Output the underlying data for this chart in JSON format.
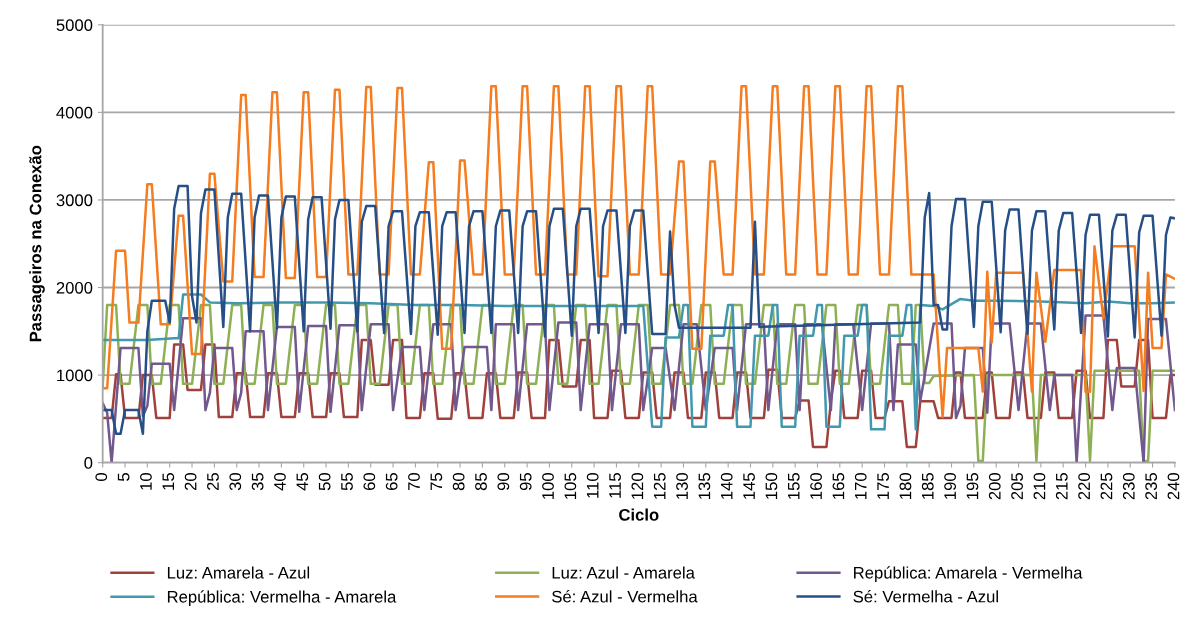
{
  "chart_data": {
    "type": "line",
    "xlabel": "Ciclo",
    "ylabel": "Passageiros na Conexão",
    "xlim": [
      0,
      240
    ],
    "xticks": [
      0,
      5,
      10,
      15,
      20,
      25,
      30,
      35,
      40,
      45,
      50,
      55,
      60,
      65,
      70,
      75,
      80,
      85,
      90,
      95,
      100,
      105,
      110,
      115,
      120,
      125,
      130,
      135,
      140,
      145,
      150,
      155,
      160,
      165,
      170,
      175,
      180,
      185,
      190,
      195,
      200,
      205,
      210,
      215,
      220,
      225,
      230,
      235,
      240
    ],
    "ylim": [
      0,
      5000
    ],
    "yticks": [
      0,
      1000,
      2000,
      3000,
      4000,
      5000
    ],
    "grid": "y",
    "legend": "bottom",
    "marker": "none",
    "line_style": "solid",
    "series": [
      {
        "name": "Luz: Amarela - Azul",
        "color": "#a0413c",
        "x": [
          0,
          2,
          3,
          4,
          5,
          8,
          9,
          11,
          12,
          15,
          16,
          18,
          19,
          22,
          23,
          25,
          26,
          29,
          30,
          32,
          33,
          36,
          37,
          39,
          40,
          43,
          44,
          46,
          47,
          50,
          51,
          53,
          54,
          57,
          58,
          60,
          61,
          64,
          65,
          67,
          68,
          71,
          72,
          74,
          75,
          78,
          79,
          81,
          82,
          85,
          86,
          88,
          89,
          92,
          93,
          95,
          96,
          99,
          100,
          102,
          103,
          106,
          107,
          109,
          110,
          113,
          114,
          116,
          117,
          120,
          121,
          123,
          124,
          127,
          128,
          130,
          131,
          134,
          135,
          137,
          138,
          141,
          142,
          144,
          145,
          148,
          149,
          151,
          152,
          155,
          156,
          158,
          159,
          162,
          163,
          164,
          165,
          166,
          169,
          170,
          172,
          173,
          175,
          176,
          179,
          180,
          182,
          183,
          186,
          187,
          190,
          191,
          192,
          193,
          197,
          198,
          199,
          200,
          203,
          204,
          206,
          207,
          210,
          211,
          213,
          214,
          217,
          218,
          220,
          221,
          224,
          225,
          227,
          228,
          231,
          232,
          234,
          235,
          238,
          239,
          240
        ],
        "values": [
          510,
          510,
          1010,
          1010,
          510,
          510,
          1000,
          1000,
          510,
          510,
          1350,
          1350,
          830,
          830,
          1350,
          1350,
          520,
          520,
          1020,
          1020,
          520,
          520,
          1020,
          1020,
          520,
          520,
          1020,
          1020,
          520,
          520,
          1020,
          1020,
          520,
          520,
          1400,
          1400,
          890,
          890,
          1400,
          1400,
          510,
          510,
          1020,
          1020,
          500,
          500,
          1020,
          1020,
          510,
          510,
          1020,
          1020,
          510,
          510,
          1030,
          1030,
          510,
          510,
          1400,
          1400,
          870,
          870,
          1400,
          1400,
          510,
          510,
          1050,
          1050,
          510,
          510,
          1030,
          1030,
          510,
          510,
          1030,
          1030,
          510,
          510,
          1030,
          1030,
          510,
          510,
          1030,
          1030,
          510,
          510,
          1060,
          1060,
          510,
          510,
          710,
          710,
          180,
          180,
          700,
          1050,
          1050,
          510,
          510,
          1050,
          1050,
          510,
          510,
          700,
          700,
          180,
          180,
          700,
          700,
          510,
          510,
          1030,
          1030,
          510,
          510,
          1030,
          1030,
          510,
          510,
          1030,
          1030,
          510,
          510,
          1030,
          1030,
          510,
          510,
          1050,
          1050,
          510,
          510,
          1400,
          1400,
          870,
          870,
          1400,
          1400,
          510,
          510,
          1000,
          1000
        ]
      },
      {
        "name": "Luz: Azul - Amarela",
        "color": "#8eb054",
        "x": [
          0,
          1,
          3,
          4,
          6,
          8,
          10,
          11,
          13,
          15,
          17,
          18,
          20,
          22,
          24,
          25,
          27,
          29,
          31,
          32,
          34,
          36,
          38,
          39,
          41,
          43,
          45,
          46,
          48,
          50,
          52,
          53,
          55,
          57,
          59,
          60,
          62,
          64,
          66,
          67,
          69,
          71,
          73,
          74,
          76,
          78,
          80,
          81,
          83,
          85,
          87,
          88,
          90,
          92,
          94,
          95,
          97,
          99,
          101,
          102,
          104,
          106,
          108,
          109,
          111,
          113,
          115,
          116,
          118,
          120,
          122,
          123,
          125,
          127,
          129,
          130,
          132,
          134,
          136,
          137,
          139,
          141,
          143,
          144,
          146,
          148,
          150,
          151,
          153,
          155,
          157,
          158,
          160,
          162,
          164,
          165,
          167,
          169,
          171,
          172,
          174,
          176,
          178,
          179,
          181,
          182,
          183,
          184,
          185,
          186,
          195,
          196,
          197,
          198,
          208,
          209,
          210,
          220,
          221,
          222,
          232,
          233,
          234,
          235,
          240
        ],
        "values": [
          870,
          1800,
          1800,
          900,
          900,
          1800,
          1800,
          900,
          900,
          1800,
          1800,
          900,
          900,
          1800,
          1800,
          900,
          900,
          1800,
          1800,
          900,
          900,
          1800,
          1800,
          900,
          900,
          1800,
          1800,
          900,
          900,
          1800,
          1800,
          900,
          900,
          1800,
          1800,
          900,
          900,
          1800,
          1800,
          900,
          900,
          1800,
          1800,
          900,
          900,
          1800,
          1800,
          900,
          900,
          1800,
          1800,
          900,
          900,
          1800,
          1800,
          900,
          900,
          1800,
          1800,
          900,
          900,
          1800,
          1800,
          900,
          900,
          1800,
          1800,
          900,
          900,
          1800,
          1800,
          900,
          900,
          1800,
          1800,
          900,
          900,
          1800,
          1800,
          900,
          900,
          1800,
          1800,
          900,
          900,
          1800,
          1800,
          900,
          900,
          1800,
          1800,
          900,
          900,
          1800,
          1800,
          900,
          900,
          1800,
          1800,
          900,
          900,
          1800,
          1800,
          900,
          900,
          1800,
          1800,
          910,
          910,
          990,
          1000,
          20,
          20,
          1000,
          1000,
          20,
          1000,
          1000,
          20,
          1050,
          1050,
          20,
          20,
          1050,
          1050
        ]
      },
      {
        "name": "República: Amarela - Vermelha",
        "color": "#71588f",
        "x": [
          0,
          1,
          2,
          4,
          8,
          9,
          10,
          11,
          15,
          16,
          18,
          22,
          23,
          24,
          25,
          29,
          30,
          31,
          32,
          36,
          37,
          39,
          43,
          44,
          46,
          50,
          51,
          53,
          57,
          58,
          60,
          64,
          65,
          67,
          71,
          72,
          74,
          78,
          79,
          81,
          86,
          87,
          88,
          92,
          93,
          95,
          99,
          100,
          102,
          106,
          107,
          109,
          113,
          114,
          116,
          120,
          121,
          123,
          126,
          128,
          130,
          133,
          135,
          137,
          141,
          142,
          144,
          148,
          149,
          151,
          155,
          156,
          157,
          161,
          163,
          164,
          168,
          170,
          172,
          176,
          177,
          178,
          182,
          183,
          186,
          190,
          191,
          192,
          193,
          197,
          198,
          199,
          203,
          205,
          207,
          210,
          212,
          213,
          217,
          218,
          220,
          224,
          226,
          227,
          231,
          233,
          234,
          238,
          240
        ],
        "values": [
          680,
          570,
          0,
          1310,
          1310,
          530,
          650,
          1130,
          1130,
          600,
          1650,
          1650,
          600,
          800,
          1310,
          1310,
          600,
          800,
          1500,
          1500,
          600,
          1550,
          1550,
          580,
          1560,
          1560,
          580,
          1570,
          1570,
          600,
          1580,
          1580,
          600,
          1320,
          1320,
          600,
          1580,
          1580,
          600,
          1320,
          1320,
          600,
          1580,
          1580,
          600,
          1580,
          1580,
          600,
          1600,
          1600,
          600,
          1580,
          1580,
          600,
          1580,
          1580,
          600,
          1310,
          1310,
          600,
          1580,
          1580,
          600,
          1310,
          1310,
          600,
          1580,
          1580,
          600,
          1580,
          1580,
          600,
          1580,
          1580,
          600,
          1580,
          1580,
          600,
          1590,
          1590,
          600,
          1350,
          1350,
          700,
          1590,
          1590,
          510,
          650,
          1310,
          1310,
          570,
          1590,
          1590,
          600,
          1590,
          1590,
          600,
          1000,
          1000,
          0,
          1680,
          1680,
          600,
          1080,
          1080,
          0,
          1640,
          1640,
          600
        ]
      },
      {
        "name": "República: Vermelha - Amarela",
        "color": "#4198af",
        "x": [
          0,
          10,
          16,
          17,
          18,
          22,
          24,
          30,
          40,
          50,
          60,
          70,
          80,
          90,
          100,
          110,
          120,
          121,
          123,
          125,
          126,
          129,
          130,
          131,
          132,
          135,
          136,
          139,
          140,
          141,
          142,
          145,
          146,
          149,
          150,
          151,
          152,
          155,
          156,
          159,
          160,
          161,
          162,
          165,
          166,
          169,
          170,
          171,
          172,
          175,
          176,
          179,
          180,
          181,
          182,
          183,
          186,
          188,
          190,
          192,
          195,
          200,
          210,
          220,
          225,
          230,
          235,
          240
        ],
        "values": [
          1400,
          1400,
          1420,
          1420,
          1920,
          1920,
          1830,
          1820,
          1830,
          1830,
          1820,
          1800,
          1800,
          1790,
          1790,
          1790,
          1790,
          1790,
          410,
          410,
          1430,
          1430,
          1800,
          1800,
          410,
          410,
          1450,
          1450,
          1800,
          1800,
          410,
          410,
          1450,
          1450,
          1800,
          1800,
          410,
          410,
          1450,
          1450,
          1800,
          1800,
          410,
          410,
          1450,
          1450,
          1800,
          1800,
          380,
          380,
          1450,
          1450,
          1800,
          1800,
          380,
          1800,
          1790,
          1750,
          1810,
          1870,
          1850,
          1850,
          1840,
          1820,
          1840,
          1820,
          1820,
          1830
        ]
      },
      {
        "name": "Sé: Azul - Vermelha",
        "color": "#f57c1f",
        "x": [
          0,
          1,
          3,
          5,
          6,
          8,
          10,
          11,
          13,
          15,
          17,
          18,
          20,
          22,
          24,
          25,
          27,
          29,
          31,
          32,
          34,
          36,
          38,
          39,
          41,
          43,
          45,
          46,
          48,
          50,
          52,
          53,
          55,
          57,
          59,
          60,
          62,
          64,
          66,
          67,
          69,
          71,
          73,
          74,
          76,
          78,
          80,
          81,
          83,
          85,
          87,
          88,
          90,
          92,
          94,
          95,
          97,
          99,
          101,
          102,
          104,
          106,
          108,
          109,
          111,
          113,
          115,
          116,
          118,
          120,
          122,
          123,
          125,
          127,
          129,
          130,
          132,
          134,
          136,
          137,
          139,
          141,
          143,
          144,
          146,
          148,
          150,
          151,
          153,
          155,
          157,
          158,
          160,
          162,
          164,
          165,
          167,
          169,
          171,
          172,
          174,
          176,
          178,
          179,
          181,
          186,
          188,
          189,
          196,
          197,
          198,
          199,
          200,
          206,
          208,
          209,
          211,
          213,
          219,
          220,
          221,
          222,
          224,
          226,
          231,
          233,
          234,
          235,
          237,
          238,
          240
        ],
        "values": [
          850,
          850,
          2420,
          2420,
          1600,
          1600,
          3180,
          3180,
          1580,
          1580,
          2820,
          2820,
          1240,
          1240,
          3300,
          3300,
          2070,
          2070,
          4200,
          4200,
          2120,
          2120,
          4230,
          4230,
          2110,
          2110,
          4230,
          4230,
          2120,
          2120,
          4260,
          4260,
          2150,
          2150,
          4290,
          4290,
          2150,
          2150,
          4280,
          4280,
          2150,
          2150,
          3430,
          3430,
          1300,
          1300,
          3450,
          3450,
          2150,
          2150,
          4300,
          4300,
          2150,
          2150,
          4300,
          4300,
          2150,
          2150,
          4300,
          4300,
          2150,
          2150,
          4300,
          4300,
          2130,
          2130,
          4300,
          4300,
          2150,
          2150,
          4300,
          4300,
          2150,
          2150,
          3440,
          3440,
          1300,
          1300,
          3440,
          3440,
          2150,
          2150,
          4300,
          4300,
          2150,
          2150,
          4300,
          4300,
          2150,
          2150,
          4300,
          4300,
          2150,
          2150,
          4300,
          4300,
          2150,
          2150,
          4300,
          4300,
          2150,
          2150,
          4300,
          4300,
          2150,
          2150,
          520,
          1310,
          1310,
          810,
          2180,
          1370,
          2170,
          2170,
          810,
          2170,
          1380,
          2200,
          2200,
          810,
          810,
          2470,
          1650,
          2470,
          2470,
          820,
          2170,
          1310,
          1310,
          2150,
          2100
        ]
      },
      {
        "name": "Sé: Vermelha - Azul",
        "color": "#254f86",
        "x": [
          0,
          2,
          3,
          4,
          5,
          8,
          9,
          10,
          11,
          14,
          15,
          16,
          17,
          19,
          20,
          21,
          22,
          23,
          25,
          27,
          28,
          29,
          31,
          33,
          34,
          35,
          37,
          39,
          40,
          41,
          43,
          45,
          46,
          47,
          49,
          51,
          52,
          53,
          55,
          57,
          58,
          59,
          61,
          63,
          64,
          65,
          67,
          69,
          70,
          71,
          73,
          75,
          76,
          77,
          79,
          81,
          82,
          83,
          85,
          87,
          88,
          89,
          91,
          93,
          94,
          95,
          97,
          99,
          100,
          101,
          103,
          105,
          106,
          107,
          109,
          111,
          112,
          113,
          115,
          117,
          118,
          119,
          121,
          123,
          126,
          127,
          128,
          129,
          145,
          146,
          147,
          183,
          184,
          185,
          186,
          187,
          188,
          189,
          190,
          191,
          193,
          195,
          196,
          197,
          199,
          201,
          202,
          203,
          205,
          207,
          208,
          209,
          211,
          213,
          214,
          215,
          217,
          219,
          220,
          221,
          223,
          225,
          226,
          227,
          229,
          231,
          232,
          233,
          235,
          237,
          238,
          239,
          240
        ],
        "values": [
          600,
          600,
          330,
          330,
          600,
          600,
          330,
          1500,
          1850,
          1850,
          1600,
          2900,
          3160,
          3160,
          1900,
          1600,
          2850,
          3120,
          3120,
          1550,
          2800,
          3070,
          3070,
          1500,
          2800,
          3050,
          3050,
          1530,
          2800,
          3040,
          3040,
          1500,
          2780,
          3030,
          3030,
          1530,
          2780,
          3000,
          3000,
          1500,
          2750,
          2930,
          2930,
          1480,
          2700,
          2870,
          2870,
          1470,
          2700,
          2860,
          2860,
          1460,
          2700,
          2860,
          2860,
          1480,
          2700,
          2870,
          2870,
          1480,
          2700,
          2880,
          2880,
          1480,
          2700,
          2870,
          2870,
          1440,
          2700,
          2900,
          2900,
          1450,
          2700,
          2900,
          2900,
          1480,
          2700,
          2880,
          2880,
          1480,
          2700,
          2880,
          2880,
          1470,
          1470,
          2640,
          1800,
          1540,
          1540,
          2750,
          1550,
          1600,
          2800,
          3080,
          1800,
          1800,
          1520,
          1520,
          2700,
          3010,
          3010,
          1550,
          2700,
          2980,
          2980,
          1490,
          2650,
          2890,
          2890,
          1470,
          2650,
          2870,
          2870,
          1520,
          2650,
          2850,
          2850,
          1480,
          2600,
          2830,
          2830,
          1440,
          2650,
          2830,
          2830,
          1430,
          2630,
          2820,
          2820,
          1450,
          2600,
          2800,
          2790
        ]
      }
    ]
  }
}
